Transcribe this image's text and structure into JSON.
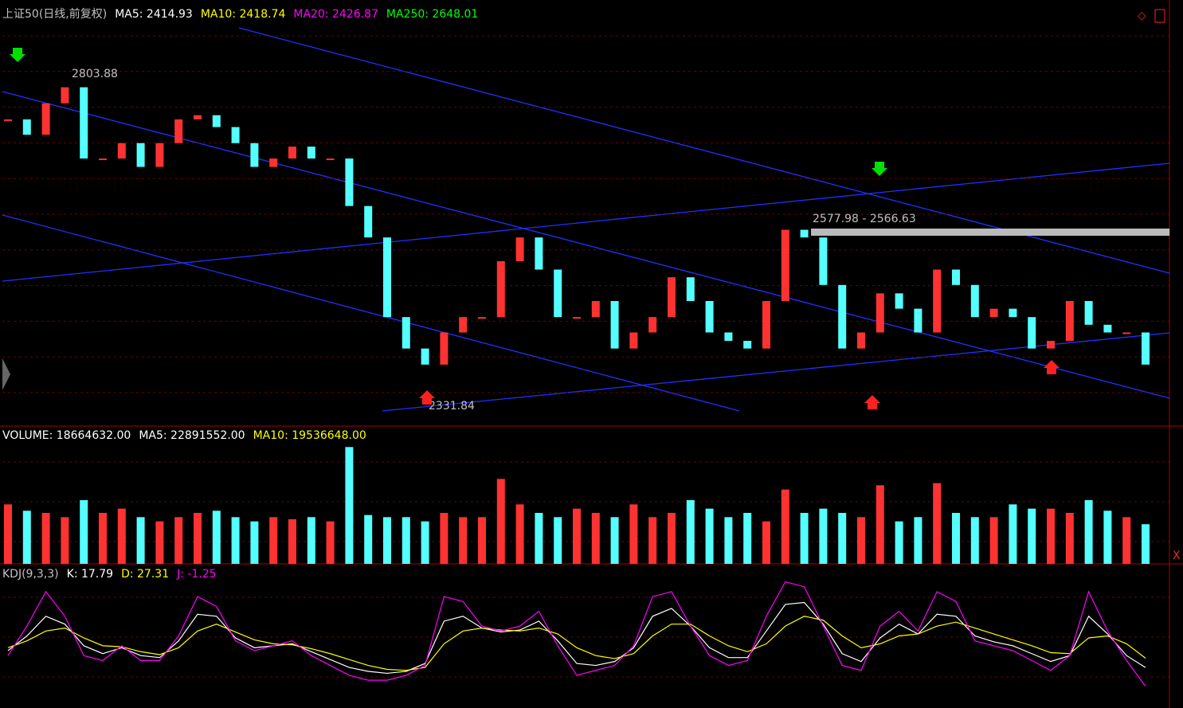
{
  "chart_data": [
    {
      "type": "candle",
      "header": [
        "上证50(日线,前复权)",
        "MA5: 2414.93",
        "MA10: 2418.74",
        "MA20: 2426.87",
        "MA250: 2648.01"
      ],
      "header_colors": [
        "#c0c0c0",
        "#ffffff",
        "#ffff00",
        "#ff00ff",
        "#00ff00"
      ],
      "annotations": [
        "2803.88",
        "2331.84",
        "2577.98 - 2566.63"
      ],
      "up_color": "#ff3232",
      "down_color": "#54ffff",
      "ylim": [
        2300,
        2870
      ],
      "values": [
        2739,
        2717,
        2762,
        2785,
        2683,
        2683,
        2705,
        2671,
        2705,
        2739,
        2745,
        2728,
        2705,
        2671,
        2683,
        2700,
        2683,
        2683,
        2615,
        2570,
        2456,
        2411,
        2388,
        2434,
        2456,
        2456,
        2536,
        2570,
        2524,
        2456,
        2456,
        2479,
        2411,
        2434,
        2456,
        2513,
        2479,
        2434,
        2422,
        2411,
        2479,
        2581,
        2570,
        2502,
        2411,
        2434,
        2490,
        2468,
        2434,
        2524,
        2502,
        2456,
        2468,
        2456,
        2411,
        2422,
        2479,
        2445,
        2434,
        2434,
        2388
      ]
    },
    {
      "type": "bar",
      "header": [
        "VOLUME: 18664632.00",
        "MA5: 22891552.00",
        "MA10: 19536648.00"
      ],
      "header_colors": [
        "#ffffff",
        "#ffffff",
        "#ffff00"
      ],
      "ylim": [
        0,
        60000000
      ],
      "values": [
        28000000,
        25000000,
        24000000,
        22000000,
        30000000,
        24000000,
        26000000,
        22000000,
        20000000,
        22000000,
        24000000,
        25000000,
        22000000,
        20000000,
        22000000,
        21000000,
        22000000,
        20000000,
        55000000,
        23000000,
        22000000,
        22000000,
        20000000,
        24000000,
        22000000,
        22000000,
        40000000,
        28000000,
        24000000,
        22000000,
        26000000,
        24000000,
        22000000,
        28000000,
        22000000,
        24000000,
        30000000,
        26000000,
        22000000,
        24000000,
        20000000,
        35000000,
        24000000,
        26000000,
        24000000,
        22000000,
        37000000,
        20000000,
        22000000,
        38000000,
        24000000,
        22000000,
        22000000,
        28000000,
        26000000,
        26000000,
        24000000,
        30000000,
        25000000,
        22000000,
        18664632
      ]
    },
    {
      "type": "line",
      "header": [
        "KDJ(9,3,3)",
        "K: 17.79",
        "D: 27.31",
        "J: -1.25"
      ],
      "header_colors": [
        "#c0c0c0",
        "#ffffff",
        "#ffff00",
        "#ff00ff"
      ],
      "ylim": [
        -20,
        120
      ],
      "series": [
        {
          "color": "#ffffff",
          "values": [
            35,
            50,
            70,
            62,
            40,
            32,
            38,
            30,
            28,
            45,
            72,
            70,
            48,
            38,
            40,
            42,
            34,
            26,
            18,
            14,
            12,
            14,
            22,
            65,
            70,
            58,
            54,
            56,
            65,
            45,
            22,
            20,
            24,
            38,
            70,
            78,
            60,
            38,
            28,
            28,
            55,
            82,
            84,
            62,
            32,
            24,
            48,
            62,
            52,
            72,
            70,
            50,
            44,
            40,
            32,
            24,
            30,
            70,
            52,
            30,
            17.79
          ]
        },
        {
          "color": "#ffff00",
          "values": [
            38,
            45,
            55,
            58,
            48,
            40,
            39,
            34,
            31,
            38,
            55,
            62,
            54,
            46,
            42,
            41,
            37,
            32,
            26,
            20,
            16,
            15,
            18,
            42,
            55,
            58,
            56,
            55,
            58,
            52,
            38,
            30,
            27,
            32,
            50,
            62,
            62,
            50,
            40,
            34,
            42,
            60,
            70,
            66,
            50,
            38,
            42,
            50,
            52,
            60,
            64,
            58,
            52,
            46,
            40,
            33,
            32,
            48,
            50,
            42,
            27.31
          ]
        },
        {
          "color": "#ff00ff",
          "values": [
            30,
            60,
            95,
            70,
            30,
            25,
            40,
            25,
            25,
            50,
            90,
            80,
            45,
            35,
            40,
            45,
            30,
            20,
            10,
            5,
            5,
            10,
            20,
            90,
            85,
            60,
            55,
            60,
            75,
            40,
            10,
            15,
            20,
            40,
            90,
            95,
            60,
            30,
            20,
            25,
            70,
            105,
            100,
            60,
            20,
            15,
            60,
            75,
            55,
            95,
            85,
            45,
            40,
            35,
            25,
            15,
            30,
            95,
            55,
            25,
            -1.25
          ]
        }
      ]
    }
  ]
}
